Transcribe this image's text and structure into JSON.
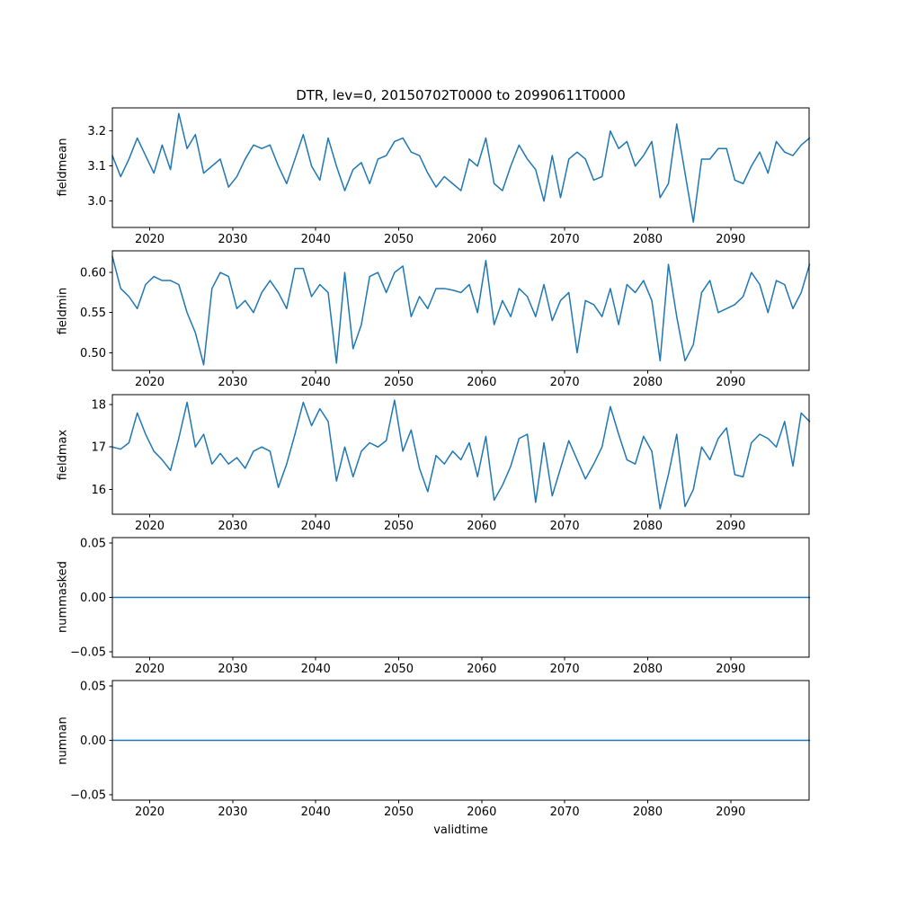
{
  "figure": {
    "background": "#ffffff",
    "line_color": "#1f77b4"
  },
  "chart_data": {
    "type": "line",
    "title": "DTR, lev=0, 20150702T0000 to 20990611T0000",
    "xlabel": "validtime",
    "grid": false,
    "legend": null,
    "x_years": [
      2015,
      2016,
      2017,
      2018,
      2019,
      2020,
      2021,
      2022,
      2023,
      2024,
      2025,
      2026,
      2027,
      2028,
      2029,
      2030,
      2031,
      2032,
      2033,
      2034,
      2035,
      2036,
      2037,
      2038,
      2039,
      2040,
      2041,
      2042,
      2043,
      2044,
      2045,
      2046,
      2047,
      2048,
      2049,
      2050,
      2051,
      2052,
      2053,
      2054,
      2055,
      2056,
      2057,
      2058,
      2059,
      2060,
      2061,
      2062,
      2063,
      2064,
      2065,
      2066,
      2067,
      2068,
      2069,
      2070,
      2071,
      2072,
      2073,
      2074,
      2075,
      2076,
      2077,
      2078,
      2079,
      2080,
      2081,
      2082,
      2083,
      2084,
      2085,
      2086,
      2087,
      2088,
      2089,
      2090,
      2091,
      2092,
      2093,
      2094,
      2095,
      2096,
      2097,
      2098,
      2099
    ],
    "xlim": [
      2015.5,
      2099.45
    ],
    "xticks": [
      2020,
      2030,
      2040,
      2050,
      2060,
      2070,
      2080,
      2090
    ],
    "panels": [
      {
        "ylabel": "fieldmean",
        "ylim": [
          2.925,
          3.266
        ],
        "yticks": [
          3.0,
          3.1,
          3.2
        ],
        "ytick_labels": [
          "3.0",
          "3.1",
          "3.2"
        ],
        "values": [
          3.13,
          3.07,
          3.12,
          3.18,
          3.13,
          3.08,
          3.16,
          3.09,
          3.25,
          3.15,
          3.19,
          3.08,
          3.1,
          3.12,
          3.04,
          3.07,
          3.12,
          3.16,
          3.15,
          3.16,
          3.1,
          3.05,
          3.12,
          3.19,
          3.1,
          3.06,
          3.18,
          3.1,
          3.03,
          3.09,
          3.11,
          3.05,
          3.12,
          3.13,
          3.17,
          3.18,
          3.14,
          3.13,
          3.08,
          3.04,
          3.07,
          3.05,
          3.03,
          3.12,
          3.1,
          3.18,
          3.05,
          3.03,
          3.1,
          3.16,
          3.12,
          3.09,
          3.0,
          3.13,
          3.01,
          3.12,
          3.14,
          3.12,
          3.06,
          3.07,
          3.2,
          3.15,
          3.17,
          3.1,
          3.13,
          3.17,
          3.01,
          3.05,
          3.22,
          3.08,
          2.94,
          3.12,
          3.12,
          3.15,
          3.15,
          3.06,
          3.05,
          3.1,
          3.14,
          3.08,
          3.17,
          3.14,
          3.13,
          3.16,
          3.18
        ]
      },
      {
        "ylabel": "fieldmin",
        "ylim": [
          0.478,
          0.627
        ],
        "yticks": [
          0.5,
          0.55,
          0.6
        ],
        "ytick_labels": [
          "0.50",
          "0.55",
          "0.60"
        ],
        "values": [
          0.62,
          0.58,
          0.57,
          0.555,
          0.585,
          0.595,
          0.59,
          0.59,
          0.585,
          0.55,
          0.525,
          0.485,
          0.58,
          0.6,
          0.595,
          0.555,
          0.565,
          0.55,
          0.575,
          0.59,
          0.575,
          0.555,
          0.605,
          0.605,
          0.57,
          0.585,
          0.575,
          0.487,
          0.6,
          0.505,
          0.535,
          0.595,
          0.6,
          0.575,
          0.6,
          0.608,
          0.545,
          0.57,
          0.555,
          0.58,
          0.58,
          0.578,
          0.575,
          0.585,
          0.55,
          0.615,
          0.535,
          0.565,
          0.545,
          0.58,
          0.57,
          0.545,
          0.585,
          0.54,
          0.565,
          0.575,
          0.5,
          0.565,
          0.56,
          0.545,
          0.58,
          0.535,
          0.585,
          0.575,
          0.59,
          0.565,
          0.49,
          0.61,
          0.545,
          0.49,
          0.51,
          0.575,
          0.59,
          0.55,
          0.555,
          0.56,
          0.57,
          0.6,
          0.585,
          0.55,
          0.59,
          0.585,
          0.555,
          0.575,
          0.61
        ]
      },
      {
        "ylabel": "fieldmax",
        "ylim": [
          15.42,
          18.23
        ],
        "yticks": [
          16,
          17,
          18
        ],
        "ytick_labels": [
          "16",
          "17",
          "18"
        ],
        "values": [
          17.0,
          16.95,
          17.1,
          17.8,
          17.3,
          16.9,
          16.7,
          16.45,
          17.2,
          18.05,
          17.0,
          17.3,
          16.6,
          16.85,
          16.6,
          16.75,
          16.5,
          16.9,
          17.0,
          16.9,
          16.05,
          16.6,
          17.3,
          18.05,
          17.5,
          17.9,
          17.6,
          16.2,
          17.0,
          16.3,
          16.9,
          17.1,
          17.0,
          17.15,
          18.1,
          16.9,
          17.4,
          16.5,
          15.95,
          16.8,
          16.6,
          16.9,
          16.7,
          17.1,
          16.3,
          17.25,
          15.75,
          16.1,
          16.55,
          17.2,
          17.3,
          15.7,
          17.1,
          15.85,
          16.5,
          17.15,
          16.7,
          16.25,
          16.6,
          17.0,
          17.95,
          17.3,
          16.7,
          16.6,
          17.25,
          16.9,
          15.55,
          16.35,
          17.3,
          15.6,
          16.0,
          17.0,
          16.7,
          17.2,
          17.45,
          16.35,
          16.3,
          17.1,
          17.3,
          17.2,
          17.0,
          17.6,
          16.55,
          17.8,
          17.6
        ]
      },
      {
        "ylabel": "nummasked",
        "ylim": [
          -0.055,
          0.055
        ],
        "yticks": [
          -0.05,
          0.0,
          0.05
        ],
        "ytick_labels": [
          "−0.05",
          "0.00",
          "0.05"
        ],
        "values_constant": 0.0
      },
      {
        "ylabel": "numnan",
        "ylim": [
          -0.055,
          0.055
        ],
        "yticks": [
          -0.05,
          0.0,
          0.05
        ],
        "ytick_labels": [
          "−0.05",
          "0.00",
          "0.05"
        ],
        "values_constant": 0.0
      }
    ]
  }
}
